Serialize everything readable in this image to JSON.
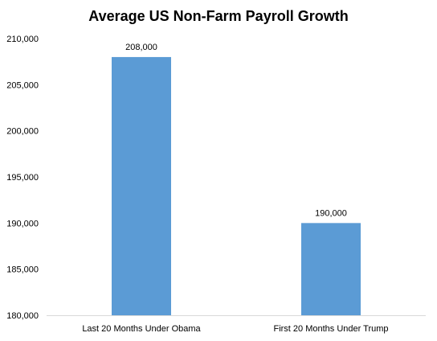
{
  "chart_data": {
    "type": "bar",
    "title": "Average US Non-Farm Payroll Growth",
    "xlabel": "",
    "ylabel": "",
    "categories": [
      "Last 20 Months Under Obama",
      "First 20 Months Under Trump"
    ],
    "values": [
      208000,
      190000
    ],
    "data_labels": [
      "208,000",
      "190,000"
    ],
    "ylim": [
      180000,
      210000
    ],
    "yticks": [
      180000,
      185000,
      190000,
      195000,
      200000,
      205000,
      210000
    ],
    "ytick_labels": [
      "180,000",
      "185,000",
      "190,000",
      "195,000",
      "200,000",
      "205,000",
      "210,000"
    ],
    "grid": false,
    "legend": "none",
    "bar_color": "#5b9bd5"
  }
}
